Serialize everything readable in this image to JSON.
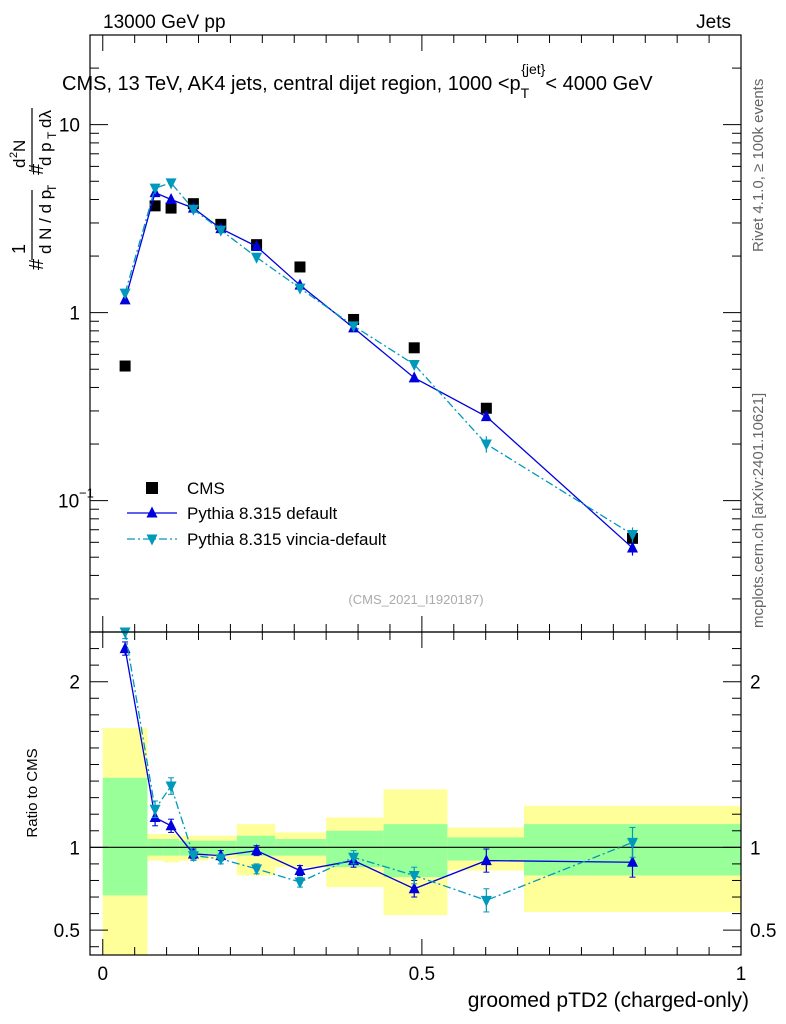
{
  "header": {
    "left": "13000 GeV pp",
    "right": "Jets"
  },
  "side_labels": {
    "upper": "Rivet 4.1.0, ≥ 100k events",
    "lower": "mcplots.cern.ch [arXiv:2401.10621]"
  },
  "watermark": "(CMS_2021_I1920187)",
  "colors": {
    "data": "#000000",
    "default": "#0000dd",
    "vincia": "#0099bb",
    "band_outer": "#ffff99",
    "band_inner": "#99ff99"
  },
  "chart_data": [
    {
      "type": "scatter",
      "title": "CMS, 13 TeV, AK4 jets, central dijet region, 1000 <p_T^{jet}< 4000 GeV",
      "ylabel": "1/(dN/dp_T) d²N/(dp_T dλ)",
      "yscale": "log",
      "ylim": [
        0.02,
        30
      ],
      "xlim": [
        -0.02,
        1.0
      ],
      "yticks": [
        {
          "value": 0.1,
          "label": "10",
          "exp": "−1"
        },
        {
          "value": 1,
          "label": "1",
          "exp": ""
        },
        {
          "value": 10,
          "label": "10",
          "exp": ""
        }
      ],
      "legend": {
        "position": "bottom-left",
        "entries": [
          "CMS",
          "Pythia 8.315 default",
          "Pythia 8.315 vincia-default"
        ]
      },
      "series": [
        {
          "name": "CMS",
          "marker": "square",
          "points": [
            {
              "x": 0.035,
              "y": 0.52
            },
            {
              "x": 0.082,
              "y": 3.7
            },
            {
              "x": 0.107,
              "y": 3.6
            },
            {
              "x": 0.142,
              "y": 3.8
            },
            {
              "x": 0.185,
              "y": 2.95
            },
            {
              "x": 0.241,
              "y": 2.3
            },
            {
              "x": 0.309,
              "y": 1.75
            },
            {
              "x": 0.393,
              "y": 0.92
            },
            {
              "x": 0.488,
              "y": 0.65
            },
            {
              "x": 0.601,
              "y": 0.31
            },
            {
              "x": 0.83,
              "y": 0.063
            }
          ]
        },
        {
          "name": "Pythia 8.315 default",
          "marker": "triangle-up",
          "line": "solid",
          "points": [
            {
              "x": 0.035,
              "y": 1.17,
              "err": 0.03
            },
            {
              "x": 0.082,
              "y": 4.35,
              "err": 0.12
            },
            {
              "x": 0.107,
              "y": 4.0,
              "err": 0.12
            },
            {
              "x": 0.142,
              "y": 3.6,
              "err": 0.1
            },
            {
              "x": 0.185,
              "y": 2.8,
              "err": 0.08
            },
            {
              "x": 0.241,
              "y": 2.25,
              "err": 0.07
            },
            {
              "x": 0.309,
              "y": 1.4,
              "err": 0.05
            },
            {
              "x": 0.393,
              "y": 0.83,
              "err": 0.03
            },
            {
              "x": 0.488,
              "y": 0.45,
              "err": 0.02
            },
            {
              "x": 0.601,
              "y": 0.28,
              "err": 0.015
            },
            {
              "x": 0.83,
              "y": 0.056,
              "err": 0.005
            }
          ]
        },
        {
          "name": "Pythia 8.315 vincia-default",
          "marker": "triangle-down",
          "line": "dashdot",
          "points": [
            {
              "x": 0.035,
              "y": 1.27,
              "err": 0.03
            },
            {
              "x": 0.082,
              "y": 4.6,
              "err": 0.12
            },
            {
              "x": 0.107,
              "y": 4.9,
              "err": 0.13
            },
            {
              "x": 0.142,
              "y": 3.55,
              "err": 0.1
            },
            {
              "x": 0.185,
              "y": 2.75,
              "err": 0.08
            },
            {
              "x": 0.241,
              "y": 1.97,
              "err": 0.07
            },
            {
              "x": 0.309,
              "y": 1.35,
              "err": 0.05
            },
            {
              "x": 0.393,
              "y": 0.85,
              "err": 0.03
            },
            {
              "x": 0.488,
              "y": 0.53,
              "err": 0.02
            },
            {
              "x": 0.601,
              "y": 0.2,
              "err": 0.02
            },
            {
              "x": 0.83,
              "y": 0.066,
              "err": 0.006
            }
          ]
        }
      ]
    },
    {
      "type": "scatter",
      "ylabel": "Ratio to CMS",
      "xlabel": "groomed pTD2 (charged-only)",
      "xlim": [
        -0.02,
        1.0
      ],
      "ylim": [
        0.35,
        2.3
      ],
      "xticks": [
        {
          "value": 0,
          "label": "0"
        },
        {
          "value": 0.5,
          "label": "0.5"
        },
        {
          "value": 1,
          "label": "1"
        }
      ],
      "yticks": [
        {
          "value": 0.5,
          "label": "0.5"
        },
        {
          "value": 1,
          "label": "1"
        },
        {
          "value": 2,
          "label": "2"
        }
      ],
      "bands": [
        {
          "x0": 0.0,
          "x1": 0.07,
          "outer": [
            0.3,
            1.72
          ],
          "inner": [
            0.71,
            1.42
          ]
        },
        {
          "x0": 0.07,
          "x1": 0.095,
          "outer": [
            0.92,
            1.08
          ],
          "inner": [
            0.95,
            1.05
          ]
        },
        {
          "x0": 0.095,
          "x1": 0.12,
          "outer": [
            0.91,
            1.08
          ],
          "inner": [
            0.95,
            1.05
          ]
        },
        {
          "x0": 0.12,
          "x1": 0.165,
          "outer": [
            0.92,
            1.07
          ],
          "inner": [
            0.95,
            1.04
          ]
        },
        {
          "x0": 0.165,
          "x1": 0.21,
          "outer": [
            0.93,
            1.07
          ],
          "inner": [
            0.96,
            1.04
          ]
        },
        {
          "x0": 0.21,
          "x1": 0.27,
          "outer": [
            0.83,
            1.14
          ],
          "inner": [
            0.95,
            1.07
          ]
        },
        {
          "x0": 0.27,
          "x1": 0.35,
          "outer": [
            0.88,
            1.09
          ],
          "inner": [
            0.95,
            1.05
          ]
        },
        {
          "x0": 0.35,
          "x1": 0.44,
          "outer": [
            0.76,
            1.18
          ],
          "inner": [
            0.88,
            1.1
          ]
        },
        {
          "x0": 0.44,
          "x1": 0.54,
          "outer": [
            0.59,
            1.35
          ],
          "inner": [
            0.82,
            1.14
          ]
        },
        {
          "x0": 0.54,
          "x1": 0.66,
          "outer": [
            0.86,
            1.12
          ],
          "inner": [
            0.92,
            1.06
          ]
        },
        {
          "x0": 0.66,
          "x1": 1.0,
          "outer": [
            0.61,
            1.25
          ],
          "inner": [
            0.83,
            1.14
          ]
        }
      ],
      "series": [
        {
          "name": "Pythia 8.315 default",
          "points": [
            {
              "x": 0.035,
              "y": 2.2,
              "err": 0.04
            },
            {
              "x": 0.082,
              "y": 1.18,
              "err": 0.05
            },
            {
              "x": 0.107,
              "y": 1.13,
              "err": 0.04
            },
            {
              "x": 0.142,
              "y": 0.96,
              "err": 0.03
            },
            {
              "x": 0.185,
              "y": 0.95,
              "err": 0.03
            },
            {
              "x": 0.241,
              "y": 0.98,
              "err": 0.03
            },
            {
              "x": 0.309,
              "y": 0.86,
              "err": 0.03
            },
            {
              "x": 0.393,
              "y": 0.92,
              "err": 0.04
            },
            {
              "x": 0.488,
              "y": 0.75,
              "err": 0.05
            },
            {
              "x": 0.601,
              "y": 0.92,
              "err": 0.07
            },
            {
              "x": 0.83,
              "y": 0.91,
              "err": 0.09
            }
          ]
        },
        {
          "name": "Pythia 8.315 vincia-default",
          "points": [
            {
              "x": 0.035,
              "y": 2.3,
              "err": 0.04
            },
            {
              "x": 0.082,
              "y": 1.23,
              "err": 0.05
            },
            {
              "x": 0.107,
              "y": 1.37,
              "err": 0.05
            },
            {
              "x": 0.142,
              "y": 0.95,
              "err": 0.03
            },
            {
              "x": 0.185,
              "y": 0.93,
              "err": 0.03
            },
            {
              "x": 0.241,
              "y": 0.87,
              "err": 0.03
            },
            {
              "x": 0.309,
              "y": 0.79,
              "err": 0.03
            },
            {
              "x": 0.393,
              "y": 0.94,
              "err": 0.04
            },
            {
              "x": 0.488,
              "y": 0.83,
              "err": 0.05
            },
            {
              "x": 0.601,
              "y": 0.68,
              "err": 0.07
            },
            {
              "x": 0.83,
              "y": 1.03,
              "err": 0.09
            }
          ]
        }
      ]
    }
  ]
}
